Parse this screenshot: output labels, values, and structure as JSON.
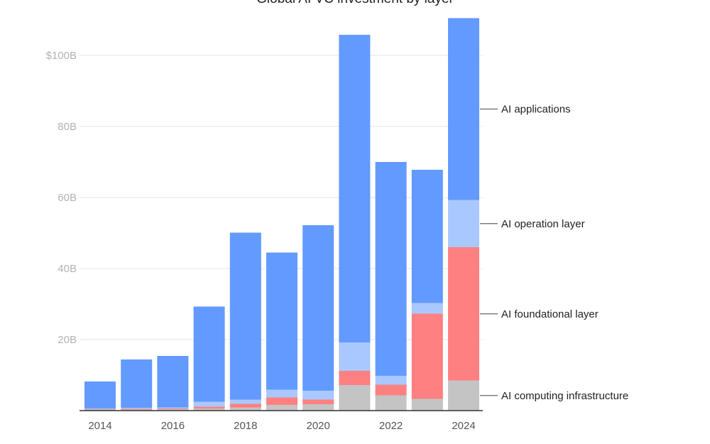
{
  "chart_data": {
    "type": "bar",
    "stacked": true,
    "title": "Global AI VC investment by layer",
    "xlabel": "",
    "ylabel": "",
    "ylim": [
      0,
      110
    ],
    "yticks": [
      {
        "value": 20,
        "label": "20B"
      },
      {
        "value": 40,
        "label": "40B"
      },
      {
        "value": 60,
        "label": "60B"
      },
      {
        "value": 80,
        "label": "80B"
      },
      {
        "value": 100,
        "label": "$100B"
      }
    ],
    "categories": [
      "2014",
      "2015",
      "2016",
      "2017",
      "2018",
      "2019",
      "2020",
      "2021",
      "2022",
      "2023",
      "2024"
    ],
    "xtick_labels": [
      "2014",
      "",
      "2016",
      "",
      "2018",
      "",
      "2020",
      "",
      "2022",
      "",
      "2024"
    ],
    "grid": true,
    "legend_placement": "right (direct labels)",
    "series": [
      {
        "name": "AI computing infrastructure",
        "color": "#c4c4c4",
        "values": [
          0.3,
          0.3,
          0.4,
          0.6,
          0.9,
          1.6,
          1.8,
          7.2,
          4.3,
          3.3,
          8.5
        ]
      },
      {
        "name": "AI foundational layer",
        "color": "#ff8080",
        "values": [
          0.1,
          0.2,
          0.2,
          0.5,
          1.0,
          2.1,
          1.3,
          4.0,
          3.0,
          24.0,
          37.5
        ]
      },
      {
        "name": "AI operation layer",
        "color": "#a9c8ff",
        "values": [
          0.2,
          0.3,
          0.3,
          1.4,
          1.2,
          2.2,
          2.5,
          8.0,
          2.5,
          3.0,
          13.3
        ]
      },
      {
        "name": "AI applications",
        "color": "#639aff",
        "values": [
          7.6,
          13.6,
          14.5,
          26.8,
          47.0,
          38.6,
          46.6,
          86.6,
          60.2,
          37.5,
          51.2
        ]
      }
    ]
  }
}
